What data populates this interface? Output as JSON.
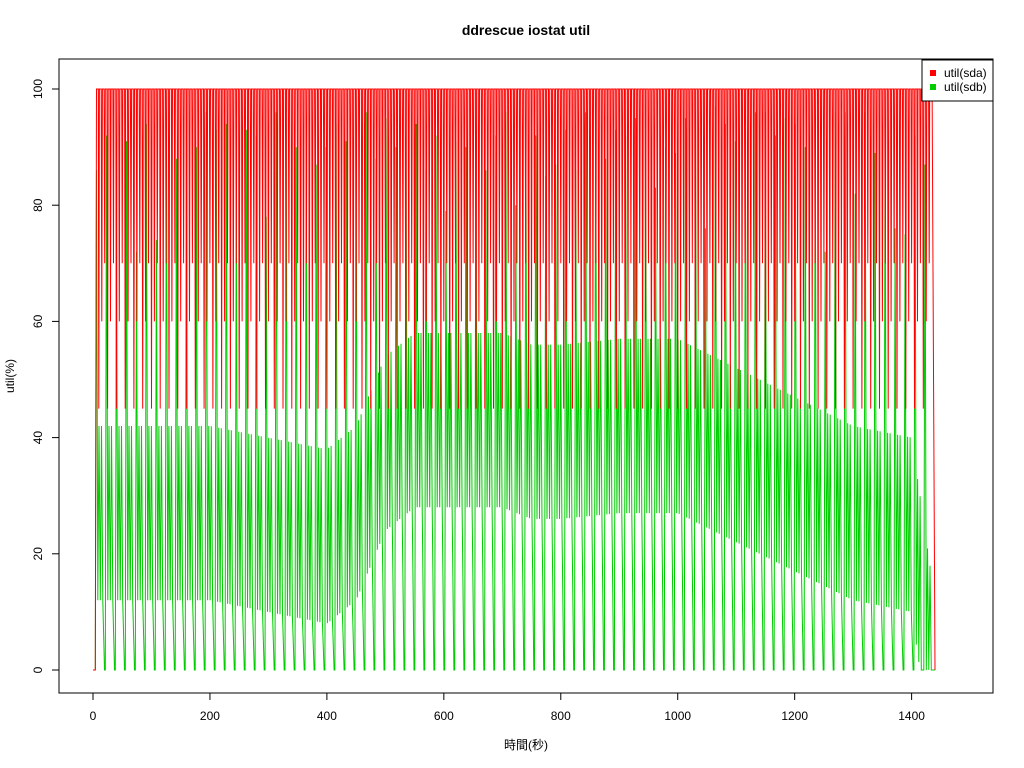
{
  "chart_data": {
    "type": "line",
    "title": "ddrescue iostat util",
    "xlabel": "時間(秒)",
    "ylabel": "util(%)",
    "xlim": [
      0,
      1440
    ],
    "ylim": [
      0,
      100
    ],
    "x_ticks": [
      0,
      200,
      400,
      600,
      800,
      1000,
      1200,
      1400
    ],
    "y_ticks": [
      0,
      20,
      40,
      60,
      80,
      100
    ],
    "legend_position": "top-right",
    "series": [
      {
        "name": "util(sda)",
        "color": "#ff0000",
        "dips": [
          5,
          10,
          15,
          20,
          25,
          30,
          35,
          40,
          45,
          50,
          55,
          60,
          65,
          70,
          75,
          80,
          85,
          90,
          95,
          100,
          105,
          110,
          115,
          120,
          125,
          130,
          135,
          140,
          145,
          150,
          155,
          160,
          165,
          170,
          175,
          180,
          185,
          190,
          195,
          200,
          205,
          210,
          215,
          220,
          225,
          230,
          235,
          240,
          245,
          250,
          255,
          260,
          265,
          270,
          275,
          280,
          285,
          290,
          295,
          300,
          305,
          310,
          315,
          320,
          325,
          330,
          335,
          340,
          345,
          350,
          355,
          360,
          365,
          370,
          375,
          380,
          385,
          390,
          395,
          400,
          405,
          410,
          415,
          420,
          425,
          430,
          435,
          440,
          445,
          450,
          455,
          460,
          465,
          470,
          475,
          480,
          485,
          490,
          495,
          500,
          505,
          510,
          515,
          520,
          525,
          530,
          535,
          540,
          545,
          550,
          555,
          560,
          565,
          570,
          575,
          580,
          585,
          590,
          595,
          600,
          605,
          610,
          615,
          620,
          625,
          630,
          635,
          640,
          645,
          650,
          655,
          660,
          665,
          670,
          675,
          680,
          685,
          690,
          695,
          700,
          705,
          710,
          715,
          720,
          725,
          730,
          735,
          740,
          745,
          750,
          755,
          760,
          765,
          770,
          775,
          780,
          785,
          790,
          795,
          800,
          805,
          810,
          815,
          820,
          825,
          830,
          835,
          840,
          845,
          850,
          855,
          860,
          865,
          870,
          875,
          880,
          885,
          890,
          895,
          900,
          905,
          910,
          915,
          920,
          925,
          930,
          935,
          940,
          945,
          950,
          955,
          960,
          965,
          970,
          975,
          980,
          985,
          990,
          995,
          1000,
          1005,
          1010,
          1015,
          1020,
          1025,
          1030,
          1035,
          1040,
          1045,
          1050,
          1055,
          1060,
          1065,
          1070,
          1075,
          1080,
          1085,
          1090,
          1095,
          1100,
          1105,
          1110,
          1115,
          1120,
          1125,
          1130,
          1135,
          1140,
          1145,
          1150,
          1155,
          1160,
          1165,
          1170,
          1175,
          1180,
          1185,
          1190,
          1195,
          1200,
          1205,
          1210,
          1215,
          1220,
          1225,
          1230,
          1235,
          1240,
          1245,
          1250,
          1255,
          1260,
          1265,
          1270,
          1275,
          1280,
          1285,
          1290,
          1295,
          1300,
          1305,
          1310,
          1315,
          1320,
          1325,
          1330,
          1335,
          1340,
          1345,
          1350,
          1355,
          1360,
          1365,
          1370,
          1375,
          1380,
          1385,
          1390,
          1395,
          1400,
          1405,
          1410,
          1415,
          1420,
          1425,
          1430,
          1435,
          1440
        ]
      },
      {
        "name": "util(sdb)",
        "color": "#00cc00",
        "peaks": [
          86,
          92,
          76,
          91,
          72,
          94,
          74,
          96,
          88,
          93,
          90,
          96,
          93,
          94,
          82,
          93,
          92,
          78,
          96,
          94,
          90,
          92,
          87,
          90,
          94,
          91,
          93,
          96,
          88,
          95,
          90,
          92,
          94,
          86,
          92,
          79,
          91,
          90,
          93,
          86,
          92,
          96,
          80,
          94,
          92,
          85,
          87,
          93,
          86,
          96,
          97,
          88,
          93,
          92,
          95,
          91,
          83,
          90,
          89,
          95,
          96,
          76,
          97,
          94,
          91,
          93,
          96,
          96,
          92,
          95,
          94,
          90,
          93,
          72,
          96,
          96,
          82,
          96,
          89,
          92,
          76,
          75,
          92,
          87
        ]
      }
    ],
    "sda_profile": [
      [
        0,
        0
      ],
      [
        4,
        0
      ],
      [
        6,
        100
      ],
      [
        1435,
        100
      ],
      [
        1440,
        0
      ]
    ],
    "sdb_baseline": [
      [
        0,
        30
      ],
      [
        200,
        30
      ],
      [
        300,
        28
      ],
      [
        400,
        26
      ],
      [
        450,
        30
      ],
      [
        500,
        42
      ],
      [
        550,
        46
      ],
      [
        700,
        46
      ],
      [
        750,
        44
      ],
      [
        800,
        44
      ],
      [
        900,
        45
      ],
      [
        1000,
        45
      ],
      [
        1100,
        40
      ],
      [
        1200,
        35
      ],
      [
        1300,
        30
      ],
      [
        1400,
        28
      ],
      [
        1440,
        0
      ]
    ]
  }
}
